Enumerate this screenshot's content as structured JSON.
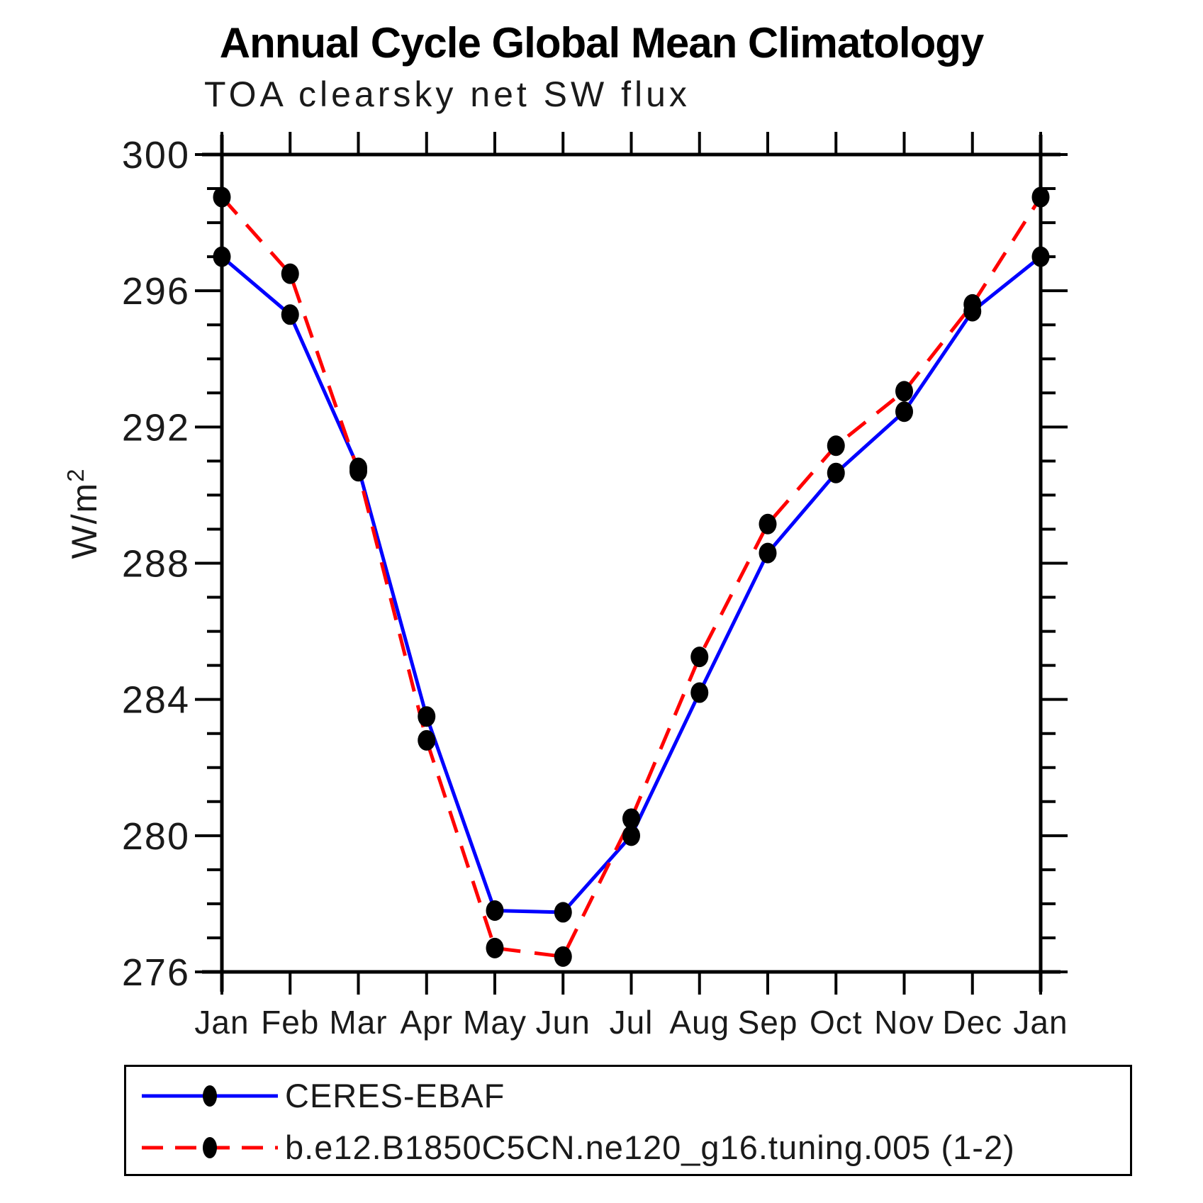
{
  "title": "Annual Cycle Global Mean Climatology",
  "subtitle": "TOA clearsky net SW flux",
  "y_axis": {
    "label_text": "W/m",
    "label_sup": "2",
    "tick_labels": [
      "300",
      "296",
      "292",
      "288",
      "284",
      "280",
      "276"
    ]
  },
  "chart_data": {
    "type": "line",
    "title": "Annual Cycle Global Mean Climatology",
    "subtitle": "TOA clearsky net SW flux",
    "xlabel": "",
    "ylabel": "W/m²",
    "x_categories": [
      "Jan",
      "Feb",
      "Mar",
      "Apr",
      "May",
      "Jun",
      "Jul",
      "Aug",
      "Sep",
      "Oct",
      "Nov",
      "Dec",
      "Jan"
    ],
    "ylim": [
      276,
      300
    ],
    "y_major_ticks": [
      276,
      280,
      284,
      288,
      292,
      296,
      300
    ],
    "y_minor_step": 1,
    "grid": false,
    "legend_position": "bottom",
    "axis_color": "#000000",
    "marker_color": "#000000",
    "series": [
      {
        "name": "CERES-EBAF",
        "color": "#0000ff",
        "style": "solid",
        "marker": "black-dot",
        "values": [
          297.0,
          295.3,
          290.8,
          283.5,
          277.8,
          277.75,
          280.0,
          284.2,
          288.3,
          290.65,
          292.45,
          295.4,
          297.0
        ]
      },
      {
        "name": "b.e12.B1850C5CN.ne120_g16.tuning.005 (1-2)",
        "color": "#ff0000",
        "style": "dashed",
        "marker": "black-dot",
        "values": [
          298.75,
          296.5,
          290.7,
          282.8,
          276.7,
          276.45,
          280.5,
          285.25,
          289.15,
          291.45,
          293.05,
          295.6,
          298.75
        ]
      }
    ]
  }
}
